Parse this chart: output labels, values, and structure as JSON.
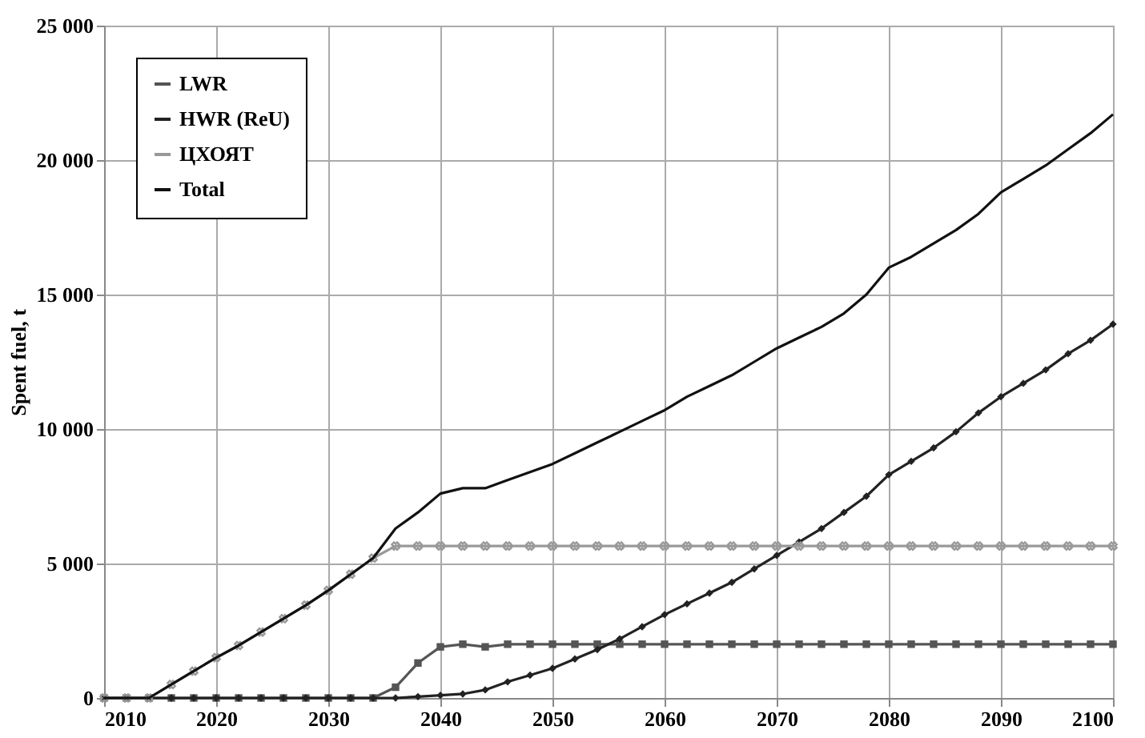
{
  "chart_data": {
    "type": "line",
    "ylabel": "Spent fuel, t",
    "x": [
      2010,
      2012,
      2014,
      2016,
      2018,
      2020,
      2022,
      2024,
      2026,
      2028,
      2030,
      2032,
      2034,
      2036,
      2038,
      2040,
      2042,
      2044,
      2046,
      2048,
      2050,
      2052,
      2054,
      2056,
      2058,
      2060,
      2062,
      2064,
      2066,
      2068,
      2070,
      2072,
      2074,
      2076,
      2078,
      2080,
      2082,
      2084,
      2086,
      2088,
      2090,
      2092,
      2094,
      2096,
      2098,
      2100
    ],
    "series": [
      {
        "name": "LWR",
        "color": "#555555",
        "marker": "square",
        "values": [
          0,
          0,
          0,
          0,
          0,
          0,
          0,
          0,
          0,
          0,
          0,
          0,
          0,
          400,
          1300,
          1900,
          2000,
          1900,
          2000,
          2000,
          2000,
          2000,
          2000,
          2000,
          2000,
          2000,
          2000,
          2000,
          2000,
          2000,
          2000,
          2000,
          2000,
          2000,
          2000,
          2000,
          2000,
          2000,
          2000,
          2000,
          2000,
          2000,
          2000,
          2000,
          2000,
          2000
        ]
      },
      {
        "name": "HWR (ReU)",
        "color": "#222222",
        "marker": "diamond",
        "values": [
          0,
          0,
          0,
          0,
          0,
          0,
          0,
          0,
          0,
          0,
          0,
          0,
          0,
          0,
          50,
          100,
          150,
          300,
          600,
          850,
          1100,
          1450,
          1800,
          2200,
          2650,
          3100,
          3500,
          3900,
          4300,
          4800,
          5300,
          5800,
          6300,
          6900,
          7500,
          8300,
          8800,
          9300,
          9900,
          10600,
          11200,
          11700,
          12200,
          12800,
          13300,
          13900
        ]
      },
      {
        "name": "ЦХОЯТ",
        "color": "#999999",
        "marker": "cross",
        "values": [
          0,
          0,
          0,
          500,
          1000,
          1500,
          1950,
          2450,
          2950,
          3450,
          4000,
          4600,
          5200,
          5650,
          5650,
          5650,
          5650,
          5650,
          5650,
          5650,
          5650,
          5650,
          5650,
          5650,
          5650,
          5650,
          5650,
          5650,
          5650,
          5650,
          5650,
          5650,
          5650,
          5650,
          5650,
          5650,
          5650,
          5650,
          5650,
          5650,
          5650,
          5650,
          5650,
          5650,
          5650,
          5650
        ]
      },
      {
        "name": "Total",
        "color": "#111111",
        "marker": "none",
        "values": [
          0,
          0,
          0,
          500,
          1000,
          1500,
          1950,
          2450,
          2950,
          3450,
          4000,
          4600,
          5200,
          6300,
          6900,
          7600,
          7800,
          7800,
          8100,
          8400,
          8700,
          9100,
          9500,
          9900,
          10300,
          10700,
          11200,
          11600,
          12000,
          12500,
          13000,
          13400,
          13800,
          14300,
          15000,
          16000,
          16400,
          16900,
          17400,
          18000,
          18800,
          19300,
          19800,
          20400,
          21000,
          21700
        ]
      }
    ],
    "xlim": [
      2010,
      2100
    ],
    "xticks": [
      2010,
      2020,
      2030,
      2040,
      2050,
      2060,
      2070,
      2080,
      2090,
      2100
    ],
    "ylim": [
      0,
      25000
    ],
    "yticks": [
      0,
      {
        "value": 5000,
        "label": "5 000"
      },
      {
        "value": 10000,
        "label": "10 000"
      },
      {
        "value": 15000,
        "label": "15 000"
      },
      {
        "value": 20000,
        "label": "20 000"
      },
      {
        "value": 25000,
        "label": "25 000"
      }
    ],
    "grid": true,
    "legend": "top left",
    "line_style": "solid"
  }
}
